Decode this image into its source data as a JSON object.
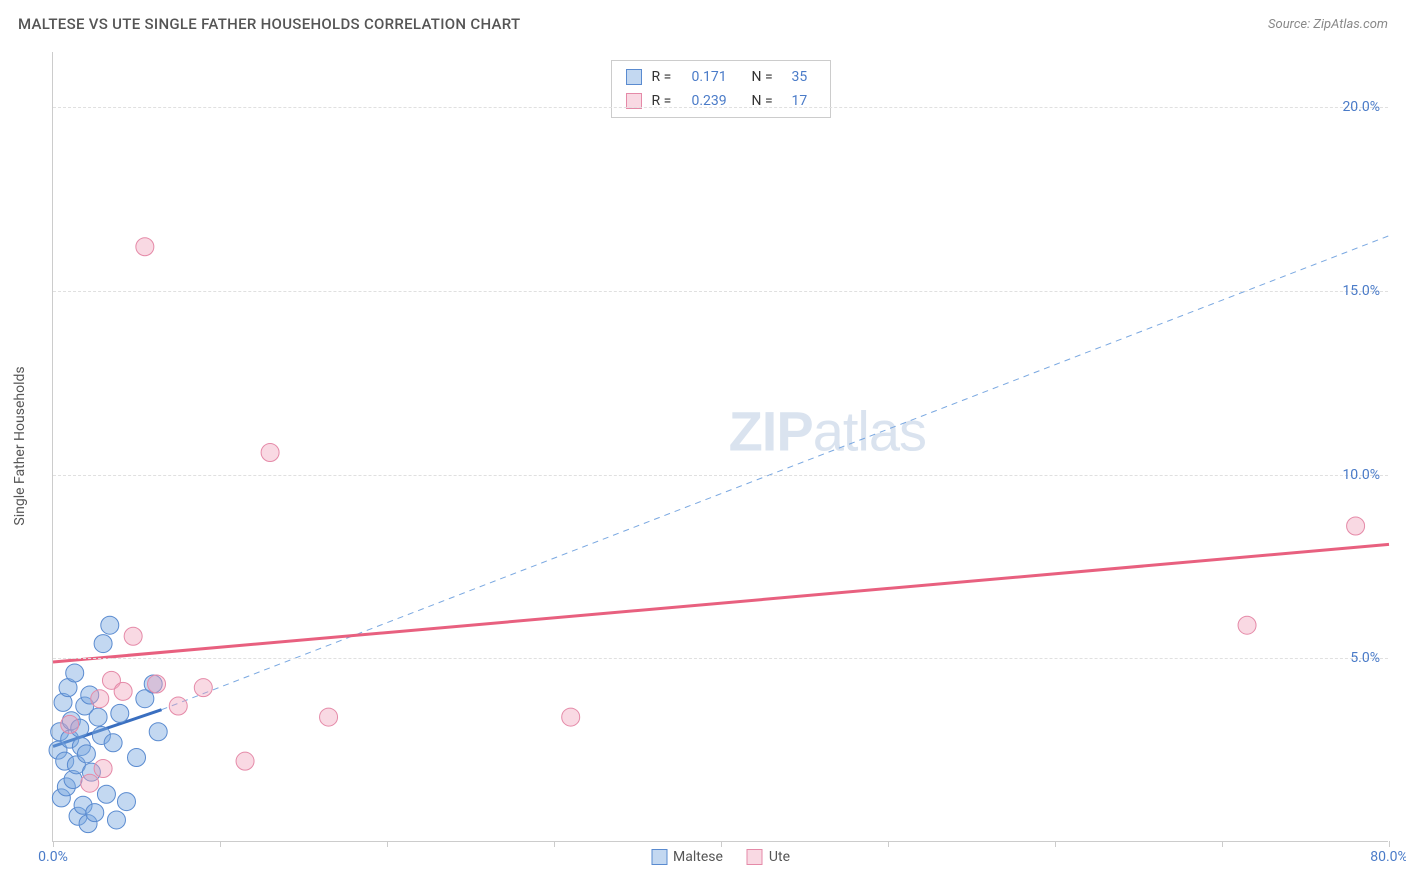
{
  "header": {
    "title": "MALTESE VS UTE SINGLE FATHER HOUSEHOLDS CORRELATION CHART",
    "source": "Source: ZipAtlas.com"
  },
  "chart": {
    "type": "scatter",
    "y_axis_title": "Single Father Households",
    "xlim": [
      0,
      80
    ],
    "ylim": [
      0,
      21.5
    ],
    "x_ticks": [
      0,
      10,
      20,
      30,
      40,
      50,
      60,
      70,
      80
    ],
    "x_tick_labels": {
      "0": "0.0%",
      "80": "80.0%"
    },
    "y_grid": [
      5,
      10,
      15,
      20
    ],
    "y_tick_labels": {
      "5": "5.0%",
      "10": "10.0%",
      "15": "15.0%",
      "20": "20.0%"
    },
    "background_color": "#ffffff",
    "grid_color": "#e0e0e0",
    "axis_color": "#cccccc",
    "tick_label_color": "#4a7bc8",
    "axis_title_color": "#555555",
    "watermark": {
      "text_bold": "ZIP",
      "text_light": "atlas",
      "color": "rgba(150,175,210,0.35)",
      "fontsize": 56
    },
    "series": [
      {
        "name": "Maltese",
        "marker_fill": "rgba(122,168,225,0.45)",
        "marker_stroke": "#5a8bd0",
        "marker_radius": 9,
        "trend_line": {
          "x1": 0,
          "y1": 2.6,
          "x2": 6.5,
          "y2": 3.6,
          "stroke": "#3a6fc0",
          "width": 3,
          "dash": "none"
        },
        "trend_extension": {
          "x1": 6.5,
          "y1": 3.6,
          "x2": 80,
          "y2": 16.5,
          "stroke": "#7aa8e1",
          "width": 1,
          "dash": "6,5"
        },
        "points": [
          {
            "x": 0.3,
            "y": 2.5
          },
          {
            "x": 0.4,
            "y": 3.0
          },
          {
            "x": 0.5,
            "y": 1.2
          },
          {
            "x": 0.6,
            "y": 3.8
          },
          {
            "x": 0.7,
            "y": 2.2
          },
          {
            "x": 0.8,
            "y": 1.5
          },
          {
            "x": 0.9,
            "y": 4.2
          },
          {
            "x": 1.0,
            "y": 2.8
          },
          {
            "x": 1.1,
            "y": 3.3
          },
          {
            "x": 1.2,
            "y": 1.7
          },
          {
            "x": 1.3,
            "y": 4.6
          },
          {
            "x": 1.4,
            "y": 2.1
          },
          {
            "x": 1.5,
            "y": 0.7
          },
          {
            "x": 1.6,
            "y": 3.1
          },
          {
            "x": 1.7,
            "y": 2.6
          },
          {
            "x": 1.8,
            "y": 1.0
          },
          {
            "x": 1.9,
            "y": 3.7
          },
          {
            "x": 2.0,
            "y": 2.4
          },
          {
            "x": 2.1,
            "y": 0.5
          },
          {
            "x": 2.2,
            "y": 4.0
          },
          {
            "x": 2.3,
            "y": 1.9
          },
          {
            "x": 2.5,
            "y": 0.8
          },
          {
            "x": 2.7,
            "y": 3.4
          },
          {
            "x": 2.9,
            "y": 2.9
          },
          {
            "x": 3.0,
            "y": 5.4
          },
          {
            "x": 3.2,
            "y": 1.3
          },
          {
            "x": 3.4,
            "y": 5.9
          },
          {
            "x": 3.6,
            "y": 2.7
          },
          {
            "x": 3.8,
            "y": 0.6
          },
          {
            "x": 4.0,
            "y": 3.5
          },
          {
            "x": 4.4,
            "y": 1.1
          },
          {
            "x": 5.0,
            "y": 2.3
          },
          {
            "x": 5.5,
            "y": 3.9
          },
          {
            "x": 6.0,
            "y": 4.3
          },
          {
            "x": 6.3,
            "y": 3.0
          }
        ]
      },
      {
        "name": "Ute",
        "marker_fill": "rgba(240,160,185,0.40)",
        "marker_stroke": "#e58aa8",
        "marker_radius": 9,
        "trend_line": {
          "x1": 0,
          "y1": 4.9,
          "x2": 80,
          "y2": 8.1,
          "stroke": "#e8607f",
          "width": 3,
          "dash": "none"
        },
        "points": [
          {
            "x": 1.0,
            "y": 3.2
          },
          {
            "x": 2.2,
            "y": 1.6
          },
          {
            "x": 2.8,
            "y": 3.9
          },
          {
            "x": 3.5,
            "y": 4.4
          },
          {
            "x": 4.2,
            "y": 4.1
          },
          {
            "x": 4.8,
            "y": 5.6
          },
          {
            "x": 5.5,
            "y": 16.2
          },
          {
            "x": 6.2,
            "y": 4.3
          },
          {
            "x": 7.5,
            "y": 3.7
          },
          {
            "x": 9.0,
            "y": 4.2
          },
          {
            "x": 11.5,
            "y": 2.2
          },
          {
            "x": 13.0,
            "y": 10.6
          },
          {
            "x": 16.5,
            "y": 3.4
          },
          {
            "x": 31.0,
            "y": 3.4
          },
          {
            "x": 71.5,
            "y": 5.9
          },
          {
            "x": 78.0,
            "y": 8.6
          },
          {
            "x": 3.0,
            "y": 2.0
          }
        ]
      }
    ],
    "legend_stats": [
      {
        "swatch_fill": "rgba(122,168,225,0.45)",
        "swatch_stroke": "#5a8bd0",
        "r": "0.171",
        "n": "35"
      },
      {
        "swatch_fill": "rgba(240,160,185,0.40)",
        "swatch_stroke": "#e58aa8",
        "r": "0.239",
        "n": "17"
      }
    ],
    "bottom_legend": [
      {
        "swatch_fill": "rgba(122,168,225,0.45)",
        "swatch_stroke": "#5a8bd0",
        "label": "Maltese"
      },
      {
        "swatch_fill": "rgba(240,160,185,0.40)",
        "swatch_stroke": "#e58aa8",
        "label": "Ute"
      }
    ]
  }
}
